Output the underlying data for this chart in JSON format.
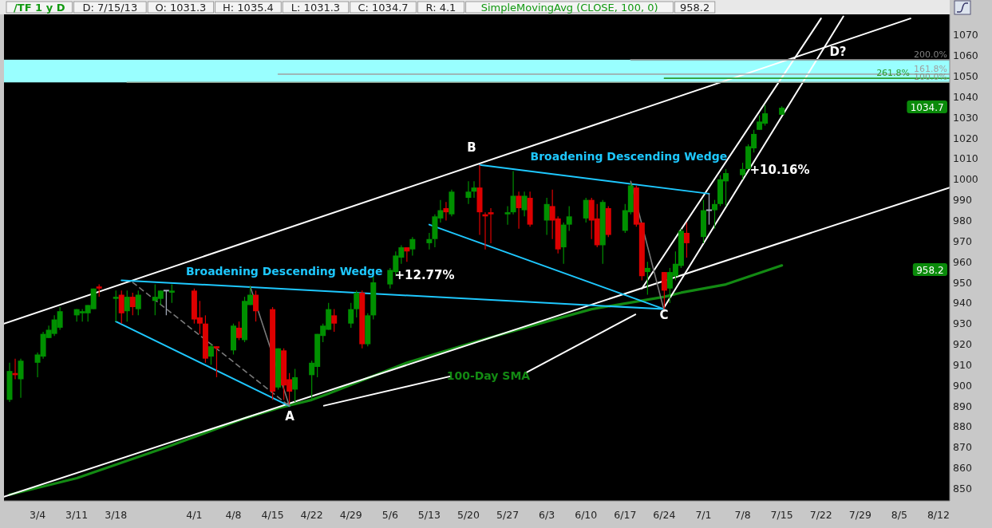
{
  "chart_data": {
    "type": "candlestick",
    "title": "/TF 1 y D",
    "subtitle": "SimpleMovingAvg (CLOSE, 100, 0)",
    "x": [
      "--02-27",
      "--02-28",
      "--03-01",
      "--03-04",
      "--03-05",
      "--03-06",
      "--03-07",
      "--03-08",
      "--03-11",
      "--03-12",
      "--03-13",
      "--03-14",
      "--03-15",
      "--03-18",
      "--03-19",
      "--03-20",
      "--03-21",
      "--03-22",
      "--03-25",
      "--03-26",
      "--03-27",
      "--03-28",
      "--04-01",
      "--04-02",
      "--04-03",
      "--04-04",
      "--04-05",
      "--04-08",
      "--04-09",
      "--04-10",
      "--04-11",
      "--04-12",
      "--04-15",
      "--04-16",
      "--04-17",
      "--04-18",
      "--04-19",
      "--04-22",
      "--04-23",
      "--04-24",
      "--04-25",
      "--04-26",
      "--04-29",
      "--04-30",
      "--05-01",
      "--05-02",
      "--05-03",
      "--05-06",
      "--05-07",
      "--05-08",
      "--05-09",
      "--05-10",
      "--05-13",
      "--05-14",
      "--05-15",
      "--05-16",
      "--05-17",
      "--05-20",
      "--05-21",
      "--05-22",
      "--05-23",
      "--05-24",
      "--05-27",
      "--05-28",
      "--05-29",
      "--05-30",
      "--05-31",
      "--06-03",
      "--06-04",
      "--06-05",
      "--06-06",
      "--06-07",
      "--06-10",
      "--06-11",
      "--06-12",
      "--06-13",
      "--06-14",
      "--06-17",
      "--06-18",
      "--06-19",
      "--06-20",
      "--06-21",
      "--06-24",
      "--06-25",
      "--06-26",
      "--06-27",
      "--06-28",
      "--07-01",
      "--07-02",
      "--07-03",
      "--07-04",
      "--07-05",
      "--07-08",
      "--07-09",
      "--07-10",
      "--07-11",
      "--07-12",
      "--07-15"
    ],
    "ohlc": [
      [
        893,
        911,
        892,
        907
      ],
      [
        906,
        913,
        903,
        905
      ],
      [
        903,
        913,
        894,
        912
      ],
      [
        911,
        916,
        904,
        915
      ],
      [
        914,
        926,
        913,
        925
      ],
      [
        923,
        929,
        923,
        927
      ],
      [
        925,
        934,
        924,
        932
      ],
      [
        928,
        938,
        927,
        936
      ],
      [
        934,
        937,
        931,
        937
      ],
      [
        935,
        937,
        931,
        936
      ],
      [
        935,
        939,
        931,
        939
      ],
      [
        937,
        947,
        937,
        947
      ],
      [
        948,
        949,
        943,
        947
      ],
      [
        942,
        946,
        931,
        943
      ],
      [
        944,
        946,
        930,
        935
      ],
      [
        936,
        946,
        931,
        943
      ],
      [
        943,
        945,
        934,
        938
      ],
      [
        937,
        946,
        934,
        944
      ],
      [
        941,
        949,
        934,
        943
      ],
      [
        942,
        946,
        939,
        946
      ],
      [
        946,
        946,
        934,
        946
      ],
      [
        945,
        949,
        940,
        946
      ],
      [
        946,
        947,
        930,
        932
      ],
      [
        933,
        941,
        925,
        930
      ],
      [
        930,
        934,
        911,
        913
      ],
      [
        914,
        920,
        910,
        919
      ],
      [
        919,
        919,
        904,
        918
      ],
      [
        917,
        930,
        915,
        929
      ],
      [
        928,
        931,
        922,
        923
      ],
      [
        922,
        943,
        921,
        941
      ],
      [
        939,
        948,
        939,
        944
      ],
      [
        944,
        946,
        931,
        936
      ],
      [
        937,
        938,
        893,
        897
      ],
      [
        899,
        918,
        898,
        918
      ],
      [
        917,
        918,
        893,
        900
      ],
      [
        903,
        906,
        891,
        897
      ],
      [
        898,
        908,
        892,
        904
      ],
      [
        905,
        912,
        893,
        911
      ],
      [
        909,
        925,
        904,
        925
      ],
      [
        924,
        930,
        921,
        929
      ],
      [
        927,
        940,
        927,
        937
      ],
      [
        934,
        937,
        926,
        930
      ],
      [
        930,
        940,
        928,
        937
      ],
      [
        937,
        946,
        933,
        945
      ],
      [
        945,
        946,
        918,
        920
      ],
      [
        920,
        935,
        919,
        934
      ],
      [
        934,
        953,
        932,
        950
      ],
      [
        949,
        957,
        947,
        956
      ],
      [
        955,
        965,
        953,
        963
      ],
      [
        962,
        968,
        959,
        967
      ],
      [
        967,
        967,
        960,
        965
      ],
      [
        966,
        972,
        963,
        971
      ],
      [
        969,
        974,
        966,
        971
      ],
      [
        971,
        983,
        967,
        982
      ],
      [
        981,
        990,
        979,
        985
      ],
      [
        986,
        989,
        980,
        984
      ],
      [
        983,
        995,
        982,
        994
      ],
      [
        991,
        999,
        988,
        994
      ],
      [
        994,
        999,
        991,
        996
      ],
      [
        996,
        1007,
        973,
        984
      ],
      [
        983,
        984,
        966,
        982
      ],
      [
        984,
        986,
        969,
        983
      ],
      [
        983,
        987,
        978,
        984
      ],
      [
        984,
        1004,
        983,
        992
      ],
      [
        992,
        994,
        976,
        986
      ],
      [
        985,
        994,
        982,
        992
      ],
      [
        991,
        994,
        977,
        978
      ],
      [
        980,
        991,
        973,
        988
      ],
      [
        987,
        995,
        971,
        980
      ],
      [
        981,
        982,
        964,
        966
      ],
      [
        967,
        979,
        959,
        978
      ],
      [
        978,
        987,
        975,
        982
      ],
      [
        981,
        991,
        979,
        990
      ],
      [
        990,
        991,
        971,
        980
      ],
      [
        981,
        988,
        967,
        968
      ],
      [
        968,
        990,
        959,
        989
      ],
      [
        986,
        987,
        972,
        973
      ],
      [
        975,
        988,
        974,
        985
      ],
      [
        984,
        998,
        983,
        997
      ],
      [
        996,
        997,
        977,
        978
      ],
      [
        979,
        979,
        951,
        953
      ],
      [
        955,
        960,
        944,
        957
      ],
      [
        955,
        955,
        937,
        946
      ],
      [
        947,
        957,
        940,
        955
      ],
      [
        953,
        965,
        951,
        959
      ],
      [
        958,
        976,
        957,
        975
      ],
      [
        974,
        979,
        962,
        969
      ],
      [
        972,
        990,
        969,
        985
      ],
      [
        985,
        993,
        978,
        985
      ],
      [
        985,
        990,
        976,
        988
      ],
      [
        988,
        1002,
        987,
        1000
      ],
      [
        999,
        1005,
        987,
        1003
      ],
      [
        1002,
        1008,
        1000,
        1005
      ],
      [
        1005,
        1017,
        1005,
        1016
      ],
      [
        1015,
        1024,
        1013,
        1022
      ],
      [
        1024,
        1031,
        1024,
        1028
      ],
      [
        1027,
        1036,
        1026,
        1032
      ],
      [
        1031.3,
        1035.4,
        1031.3,
        1034.7
      ]
    ],
    "series": [
      {
        "type": "line",
        "name": "100-Day SMA",
        "color": "#138a13",
        "x": [
          "--02-27",
          "--03-11",
          "--03-27",
          "--04-10",
          "--04-16",
          "--04-22",
          "--04-25",
          "--05-09",
          "--05-21",
          "--06-03",
          "--06-11",
          "--06-24",
          "--06-27",
          "--07-05",
          "--07-15"
        ],
        "values": [
          847,
          855,
          870,
          884,
          889,
          893,
          896,
          911,
          921,
          931,
          937,
          943,
          945,
          949,
          958.2
        ]
      },
      {
        "type": "line",
        "color": "#ffffff",
        "x": [
          "--02-26",
          "--08-07"
        ],
        "values": [
          930,
          1078
        ]
      },
      {
        "type": "line",
        "color": "#ffffff",
        "x": [
          "--02-26",
          "--08-14"
        ],
        "values": [
          846,
          996
        ]
      },
      {
        "type": "line",
        "color": "#ffffff",
        "x": [
          "--06-20",
          "--07-22"
        ],
        "values": [
          947,
          1078
        ]
      },
      {
        "type": "line",
        "color": "#ffffff",
        "x": [
          "--06-24",
          "--07-26"
        ],
        "values": [
          938,
          1079
        ]
      },
      {
        "type": "line",
        "name": "Broadening Descending Wedge",
        "color": "#1ec8ff",
        "x": [
          "--03-19",
          "--06-24"
        ],
        "values": [
          951,
          937
        ]
      },
      {
        "type": "line",
        "color": "#1ec8ff",
        "x": [
          "--03-18",
          "--04-18"
        ],
        "values": [
          931,
          890
        ]
      },
      {
        "type": "line",
        "name": "Broadening Descending Wedge",
        "color": "#1ec8ff",
        "x": [
          "--05-22",
          "--07-02"
        ],
        "values": [
          1007,
          993
        ]
      },
      {
        "type": "line",
        "color": "#1ec8ff",
        "x": [
          "--05-13",
          "--06-24"
        ],
        "values": [
          978,
          937
        ]
      },
      {
        "type": "line",
        "color": "#7a7a7a",
        "line_style": "dashed",
        "x": [
          "--03-21",
          "--04-18"
        ],
        "values": [
          950,
          890
        ]
      },
      {
        "type": "line",
        "color": "#7a7a7a",
        "x": [
          "--04-11",
          "--04-18"
        ],
        "values": [
          948,
          890
        ]
      },
      {
        "type": "line",
        "color": "#7a7a7a",
        "x": [
          "--06-18",
          "--06-24"
        ],
        "values": [
          999,
          936
        ]
      },
      {
        "type": "line",
        "name": "200.0%",
        "color": "#808080",
        "x": [
          "--06-18",
          "--08-14"
        ],
        "values": [
          1058,
          1058
        ]
      },
      {
        "type": "line",
        "name": "161.8%",
        "color": "#a0a0a0",
        "x": [
          "--04-16",
          "--08-14"
        ],
        "values": [
          1051,
          1051
        ]
      },
      {
        "type": "line",
        "name": "261.8%",
        "color": "#2e9a2e",
        "x": [
          "--06-24",
          "--08-14"
        ],
        "values": [
          1049,
          1049
        ]
      },
      {
        "type": "line",
        "name": "100.0%",
        "color": "#8a9a8a",
        "x": [
          "--03-20",
          "--08-14"
        ],
        "values": [
          1047,
          1047
        ]
      }
    ],
    "bands": [
      {
        "axis": "y",
        "from": 1047,
        "to": 1058,
        "color": "#99ffff"
      }
    ],
    "annotations": [
      "D: 7/15/13",
      "O: 1031.3",
      "H: 1035.4",
      "L: 1031.3",
      "C: 1034.7",
      "R: 4.1",
      "958.2",
      "A",
      "B",
      "C",
      "D?",
      "+12.77%",
      "+10.16%",
      "1034.7",
      "958.2"
    ],
    "xlim": [
      "--02-26",
      "--08-14"
    ],
    "xticks": [
      {
        "value": "--03-04",
        "label": "3/4"
      },
      {
        "value": "--03-11",
        "label": "3/11"
      },
      {
        "value": "--03-18",
        "label": "3/18"
      },
      {
        "value": "--04-01",
        "label": "4/1"
      },
      {
        "value": "--04-08",
        "label": "4/8"
      },
      {
        "value": "--04-15",
        "label": "4/15"
      },
      {
        "value": "--04-22",
        "label": "4/22"
      },
      {
        "value": "--04-29",
        "label": "4/29"
      },
      {
        "value": "--05-06",
        "label": "5/6"
      },
      {
        "value": "--05-13",
        "label": "5/13"
      },
      {
        "value": "--05-20",
        "label": "5/20"
      },
      {
        "value": "--05-27",
        "label": "5/27"
      },
      {
        "value": "--06-03",
        "label": "6/3"
      },
      {
        "value": "--06-10",
        "label": "6/10"
      },
      {
        "value": "--06-17",
        "label": "6/17"
      },
      {
        "value": "--06-24",
        "label": "6/24"
      },
      {
        "value": "--07-01",
        "label": "7/1"
      },
      {
        "value": "--07-08",
        "label": "7/8"
      },
      {
        "value": "--07-15",
        "label": "7/15"
      },
      {
        "value": "--07-22",
        "label": "7/22"
      },
      {
        "value": "--07-29",
        "label": "7/29"
      },
      {
        "value": "--08-05",
        "label": "8/5"
      },
      {
        "value": "--08-12",
        "label": "8/12"
      }
    ],
    "ylim": [
      844,
      1080
    ],
    "yticks": [
      850,
      860,
      870,
      880,
      890,
      900,
      910,
      920,
      930,
      940,
      950,
      960,
      970,
      980,
      990,
      1000,
      1010,
      1020,
      1030,
      1040,
      1050,
      1060,
      1070
    ]
  }
}
